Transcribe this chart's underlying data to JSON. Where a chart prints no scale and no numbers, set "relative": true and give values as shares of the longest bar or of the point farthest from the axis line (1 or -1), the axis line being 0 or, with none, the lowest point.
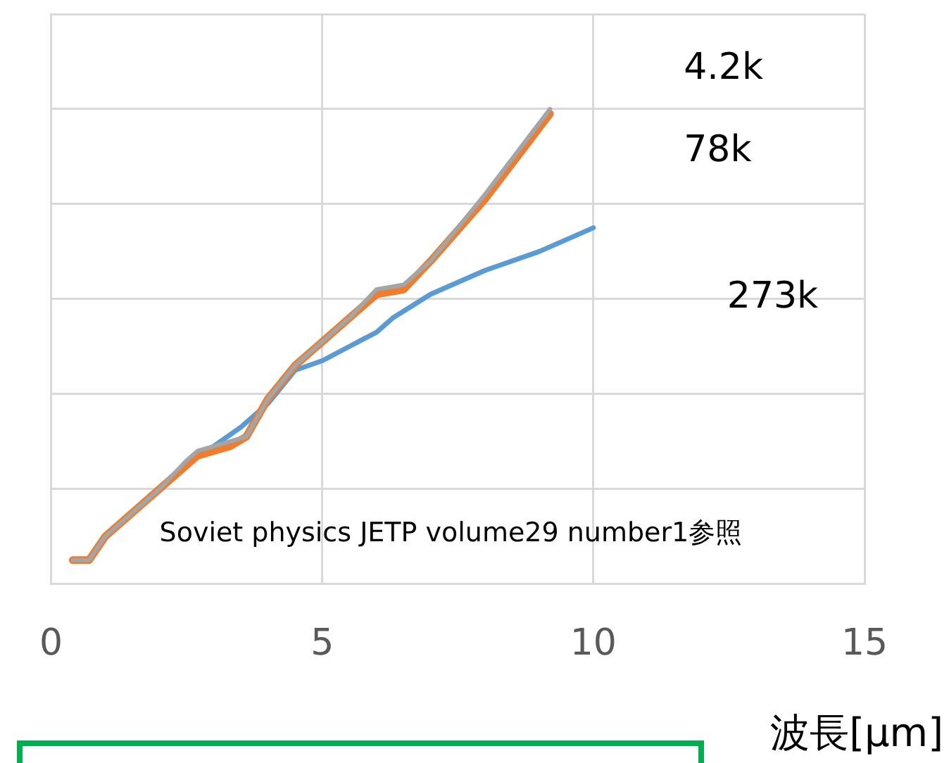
{
  "chart_data": {
    "type": "line",
    "xlabel": "波長[μm]",
    "annotations": [
      "Soviet physics JETP volume29 number1参照"
    ],
    "xlim": [
      0,
      15
    ],
    "xticks": [
      0,
      5,
      10,
      15
    ],
    "relative": true,
    "grid": true,
    "marker": "none",
    "series": [
      {
        "name": "273k",
        "color": "#5b9bd5",
        "x": [
          3.0,
          3.5,
          4.0,
          4.5,
          5.0,
          5.5,
          6.0,
          6.3,
          7.0,
          8.0,
          9.0,
          10.0
        ],
        "values": [
          0.29,
          0.33,
          0.38,
          0.45,
          0.47,
          0.5,
          0.53,
          0.56,
          0.61,
          0.66,
          0.7,
          0.75
        ]
      },
      {
        "name": "78k",
        "color": "#ed7d31",
        "x": [
          0.4,
          0.7,
          1.0,
          1.5,
          2.0,
          2.5,
          2.7,
          3.3,
          3.6,
          4.0,
          4.5,
          5.0,
          5.5,
          6.0,
          6.5,
          7.0,
          8.0,
          9.2
        ],
        "values": [
          0.05,
          0.05,
          0.1,
          0.15,
          0.2,
          0.25,
          0.27,
          0.29,
          0.31,
          0.39,
          0.46,
          0.51,
          0.56,
          0.61,
          0.62,
          0.68,
          0.81,
          0.99
        ]
      },
      {
        "name": "4.2k",
        "color": "#a5a5a5",
        "x": [
          0.4,
          0.7,
          1.0,
          1.5,
          2.0,
          2.5,
          2.7,
          3.3,
          3.6,
          4.0,
          4.5,
          5.0,
          5.5,
          6.0,
          6.5,
          7.0,
          8.0,
          9.2
        ],
        "values": [
          0.05,
          0.05,
          0.1,
          0.15,
          0.2,
          0.26,
          0.28,
          0.3,
          0.31,
          0.39,
          0.46,
          0.51,
          0.56,
          0.62,
          0.63,
          0.68,
          0.82,
          1.0
        ]
      }
    ]
  }
}
